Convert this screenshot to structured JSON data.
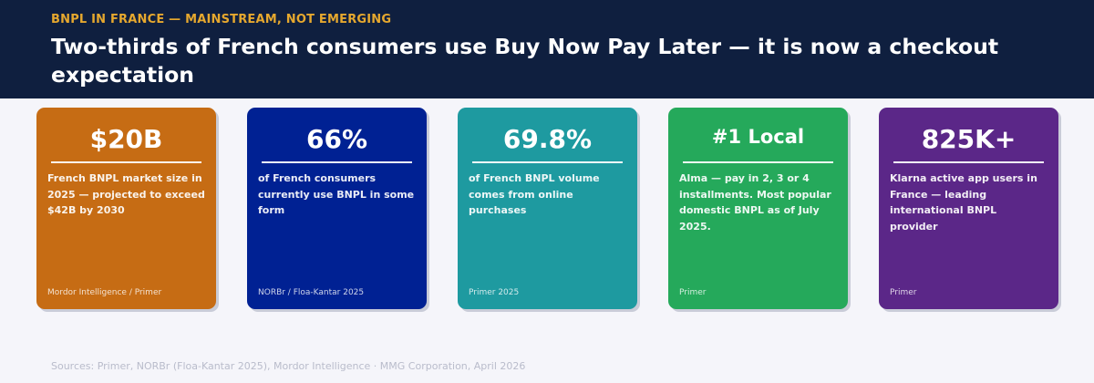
{
  "header": {
    "eyebrow": "BNPL IN FRANCE — MAINSTREAM, NOT EMERGING",
    "title": "Two-thirds of French consumers use Buy Now Pay Later — it is now a checkout expectation"
  },
  "cards": [
    {
      "stat": "$20B",
      "description": "French BNPL market size in 2025 — projected to exceed $42B by 2030",
      "source": "Mordor Intelligence / Primer",
      "color": "#c66c14"
    },
    {
      "stat": "66%",
      "description": "of French consumers currently use BNPL in some form",
      "source": "NORBr / Floa-Kantar 2025",
      "color": "#002193"
    },
    {
      "stat": "69.8%",
      "description": "of French BNPL volume comes from online purchases",
      "source": "Primer 2025",
      "color": "#1e9aa0"
    },
    {
      "stat": "#1 Local",
      "description": "Alma — pay in 2, 3 or 4 installments. Most popular domestic BNPL as of July 2025.",
      "source": "Primer",
      "color": "#25a95b"
    },
    {
      "stat": "825K+",
      "description": "Klarna active app users in France — leading international BNPL provider",
      "source": "Primer",
      "color": "#5b2788"
    }
  ],
  "footer": {
    "text": "Sources: Primer, NORBr (Floa-Kantar 2025), Mordor Intelligence  ·  MMG Corporation, April 2026"
  },
  "colors": {
    "header_bg": "#0f1f3f",
    "eyebrow": "#e6a82e",
    "page_bg": "#f5f5fa"
  }
}
